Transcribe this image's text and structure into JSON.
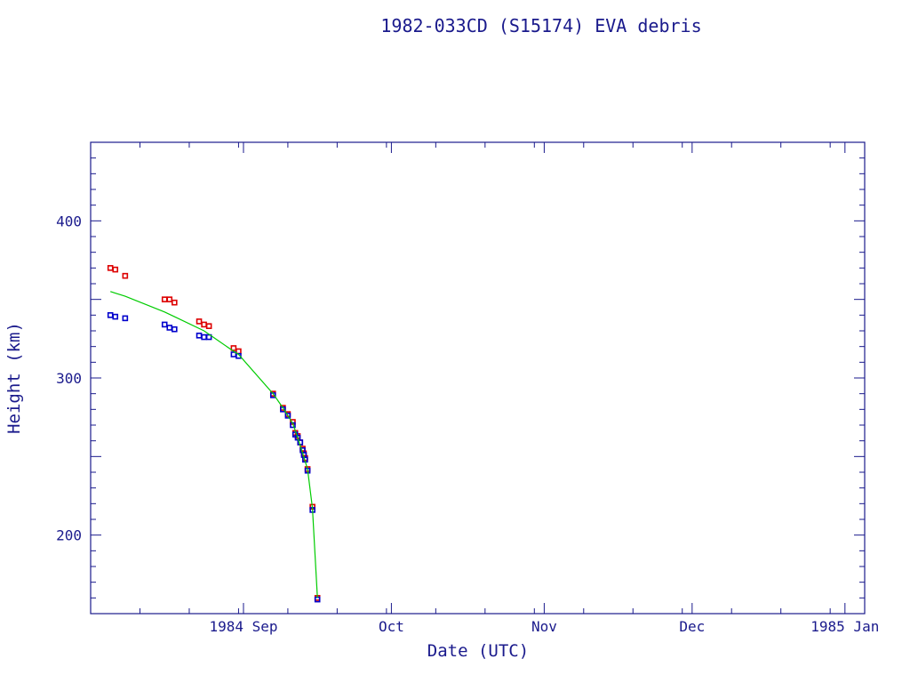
{
  "chart_data": {
    "type": "scatter",
    "title": "1982-033CD (S15174) EVA debris",
    "xlabel": "Date (UTC)",
    "ylabel": "Height (km)",
    "xlim": [
      "1984-08-01",
      "1985-01-05"
    ],
    "ylim": [
      150,
      450
    ],
    "x_tick_labels": [
      {
        "date": "1984-09-01",
        "label": "1984 Sep"
      },
      {
        "date": "1984-10-01",
        "label": "Oct"
      },
      {
        "date": "1984-11-01",
        "label": "Nov"
      },
      {
        "date": "1984-12-01",
        "label": "Dec"
      },
      {
        "date": "1985-01-01",
        "label": "1985 Jan"
      }
    ],
    "y_tick_labels": [
      200,
      300,
      400
    ],
    "colors": {
      "axis": "#1a1a8c",
      "apogee": "#dd0000",
      "perigee": "#0000cc",
      "mean": "#00cc00"
    },
    "series": [
      {
        "kind": "points",
        "color": "#dd0000",
        "points": [
          [
            "1984-08-05",
            370
          ],
          [
            "1984-08-06",
            369
          ],
          [
            "1984-08-08",
            365
          ],
          [
            "1984-08-16",
            350
          ],
          [
            "1984-08-17",
            350
          ],
          [
            "1984-08-18",
            348
          ],
          [
            "1984-08-23",
            336
          ],
          [
            "1984-08-24",
            334
          ],
          [
            "1984-08-25",
            333
          ],
          [
            "1984-08-30",
            319
          ],
          [
            "1984-08-31",
            317
          ],
          [
            "1984-09-07",
            290
          ],
          [
            "1984-09-09",
            281
          ],
          [
            "1984-09-10",
            277
          ],
          [
            "1984-09-11",
            272
          ],
          [
            "1984-09-11T12:00",
            265
          ],
          [
            "1984-09-12",
            263
          ],
          [
            "1984-09-12T12:00",
            259
          ],
          [
            "1984-09-13",
            255
          ],
          [
            "1984-09-13T06:00",
            252
          ],
          [
            "1984-09-13T12:00",
            249
          ],
          [
            "1984-09-14",
            242
          ],
          [
            "1984-09-15",
            218
          ],
          [
            "1984-09-16",
            160
          ]
        ]
      },
      {
        "kind": "points",
        "color": "#0000cc",
        "points": [
          [
            "1984-08-05",
            340
          ],
          [
            "1984-08-06",
            339
          ],
          [
            "1984-08-08",
            338
          ],
          [
            "1984-08-16",
            334
          ],
          [
            "1984-08-17",
            332
          ],
          [
            "1984-08-18",
            331
          ],
          [
            "1984-08-23",
            327
          ],
          [
            "1984-08-24",
            326
          ],
          [
            "1984-08-25",
            326
          ],
          [
            "1984-08-30",
            315
          ],
          [
            "1984-08-31",
            314
          ],
          [
            "1984-09-07",
            289
          ],
          [
            "1984-09-09",
            280
          ],
          [
            "1984-09-10",
            276
          ],
          [
            "1984-09-11",
            270
          ],
          [
            "1984-09-11T12:00",
            264
          ],
          [
            "1984-09-12",
            262
          ],
          [
            "1984-09-12T12:00",
            259
          ],
          [
            "1984-09-13",
            254
          ],
          [
            "1984-09-13T06:00",
            251
          ],
          [
            "1984-09-13T12:00",
            248
          ],
          [
            "1984-09-14",
            241
          ],
          [
            "1984-09-15",
            216
          ],
          [
            "1984-09-16",
            159
          ]
        ]
      },
      {
        "kind": "line",
        "color": "#00cc00",
        "points": [
          [
            "1984-08-05",
            355
          ],
          [
            "1984-08-08",
            352
          ],
          [
            "1984-08-16",
            342
          ],
          [
            "1984-08-18",
            339
          ],
          [
            "1984-08-24",
            330
          ],
          [
            "1984-08-30",
            317
          ],
          [
            "1984-08-31",
            315
          ],
          [
            "1984-09-07",
            290
          ],
          [
            "1984-09-09",
            281
          ],
          [
            "1984-09-11",
            271
          ],
          [
            "1984-09-12",
            262
          ],
          [
            "1984-09-13",
            252
          ],
          [
            "1984-09-14",
            242
          ],
          [
            "1984-09-15",
            217
          ],
          [
            "1984-09-16",
            160
          ]
        ]
      }
    ]
  }
}
